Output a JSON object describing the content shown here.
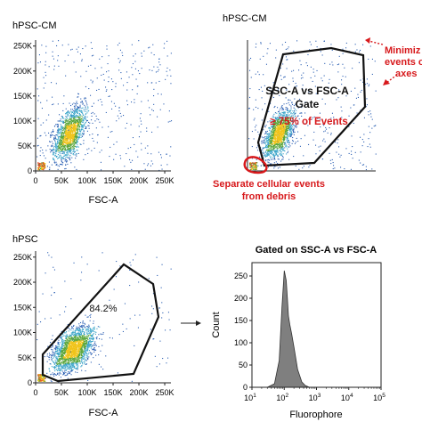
{
  "panels": {
    "top_left": {
      "title": "hPSC-CM",
      "xlabel": "FSC-A",
      "x_ticks": [
        "0",
        "50K",
        "100K",
        "150K",
        "200K",
        "250K"
      ],
      "y_ticks": [
        "0",
        "50K",
        "100K",
        "150K",
        "200K",
        "250K"
      ]
    },
    "top_right": {
      "title": "hPSC-CM",
      "gate_label_line1": "SSC-A vs FSC-A",
      "gate_label_line2": "Gate",
      "gate_percent_label": "≥ 75% of Events",
      "annotation_debris_line1": "Separate cellular events",
      "annotation_debris_line2": "from debris",
      "annotation_axes_line1": "Minimiz",
      "annotation_axes_line2": "events o",
      "annotation_axes_line3": "axes"
    },
    "bottom_left": {
      "title": "hPSC",
      "xlabel": "FSC-A",
      "gate_percent": "84.2%",
      "x_ticks": [
        "0",
        "50K",
        "100K",
        "150K",
        "200K",
        "250K"
      ],
      "y_ticks": [
        "0",
        "50K",
        "100K",
        "150K",
        "200K",
        "250K"
      ]
    },
    "bottom_right": {
      "title": "Gated on SSC-A vs FSC-A",
      "xlabel": "Fluorophore",
      "ylabel": "Count",
      "y_ticks": [
        "0",
        "50",
        "100",
        "150",
        "200",
        "250"
      ]
    }
  },
  "colors": {
    "axis": "#222222",
    "gate": "#111111",
    "annotation": "#d7191c",
    "histogram_fill": "#7f7f7f"
  },
  "chart_data": [
    {
      "type": "scatter",
      "panel": "top_left",
      "xlabel": "FSC-A",
      "xlim": [
        0,
        262144
      ],
      "ylim": [
        0,
        262144
      ],
      "density_center": [
        90000,
        80000
      ],
      "points_note": ""
    },
    {
      "type": "scatter",
      "panel": "top_right",
      "xlim": [
        0,
        262144
      ],
      "ylim": [
        0,
        262144
      ],
      "gate_polygon": [
        [
          30000,
          60000
        ],
        [
          135000,
          245000
        ],
        [
          235000,
          230000
        ],
        [
          230000,
          90000
        ],
        [
          60000,
          15000
        ],
        [
          15000,
          25000
        ]
      ],
      "debris_gate_center": [
        8000,
        8000
      ]
    },
    {
      "type": "scatter",
      "panel": "bottom_left",
      "xlabel": "FSC-A",
      "xlim": [
        0,
        262144
      ],
      "ylim": [
        0,
        262144
      ],
      "gate_polygon": [
        [
          8000,
          15000
        ],
        [
          12000,
          55000
        ],
        [
          160000,
          240000
        ],
        [
          240000,
          200000
        ],
        [
          250000,
          130000
        ],
        [
          200000,
          45000
        ],
        [
          30000,
          10000
        ]
      ],
      "gate_percent": 84.2
    },
    {
      "type": "area",
      "panel": "bottom_right",
      "title": "Gated on SSC-A vs FSC-A",
      "xlabel": "Fluorophore",
      "ylabel": "Count",
      "x_scale": "log",
      "xlim": [
        10,
        100000
      ],
      "ylim": [
        0,
        280
      ],
      "x_tick_exponents": [
        1,
        2,
        3,
        4,
        5
      ],
      "x": [
        30,
        50,
        70,
        85,
        100,
        115,
        125,
        135,
        150,
        170,
        200,
        260,
        350,
        450,
        600
      ],
      "values": [
        0,
        8,
        60,
        180,
        262,
        240,
        200,
        160,
        140,
        120,
        90,
        40,
        12,
        4,
        0
      ]
    }
  ]
}
